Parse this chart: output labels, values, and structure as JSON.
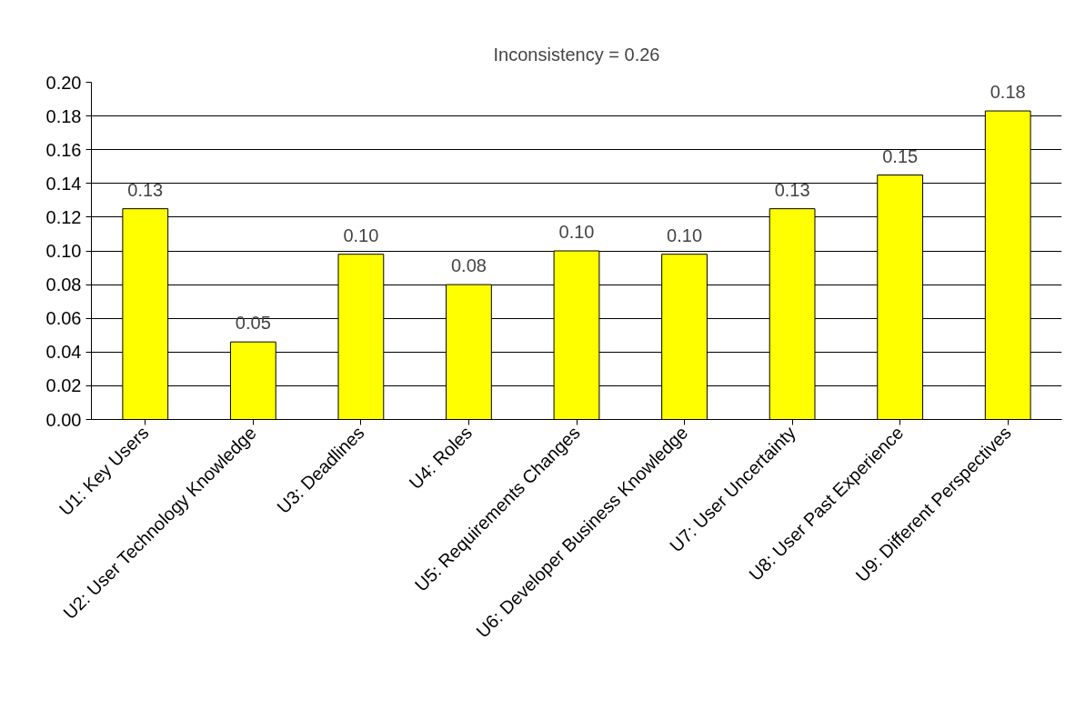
{
  "chart_data": {
    "type": "bar",
    "title": "Inconsistency = 0.26",
    "categories": [
      "U1: Key Users",
      "U2: User Technology Knowledge",
      "U3: Deadlines",
      "U4: Roles",
      "U5: Requirements Changes",
      "U6: Developer Business Knowledge",
      "U7: User Uncertainty",
      "U8: User Past Experience",
      "U9: Different Perspectives"
    ],
    "values": [
      0.125,
      0.046,
      0.098,
      0.08,
      0.1,
      0.098,
      0.125,
      0.145,
      0.183
    ],
    "value_labels": [
      "0.13",
      "0.05",
      "0.10",
      "0.08",
      "0.10",
      "0.10",
      "0.13",
      "0.15",
      "0.18"
    ],
    "color": "#ffff00",
    "ylim": [
      0,
      0.2
    ],
    "yticks": [
      {
        "value": 0,
        "label": "0.00"
      },
      {
        "value": 0.02,
        "label": "0.02"
      },
      {
        "value": 0.04,
        "label": "0.04"
      },
      {
        "value": 0.06,
        "label": "0.06"
      },
      {
        "value": 0.08,
        "label": "0.08"
      },
      {
        "value": 0.1,
        "label": "0.10"
      },
      {
        "value": 0.12,
        "label": "0.12"
      },
      {
        "value": 0.14,
        "label": "0.14"
      },
      {
        "value": 0.16,
        "label": "0.16"
      },
      {
        "value": 0.18,
        "label": "0.18"
      },
      {
        "value": 0.2,
        "label": "0.20"
      }
    ],
    "grid": "y"
  }
}
